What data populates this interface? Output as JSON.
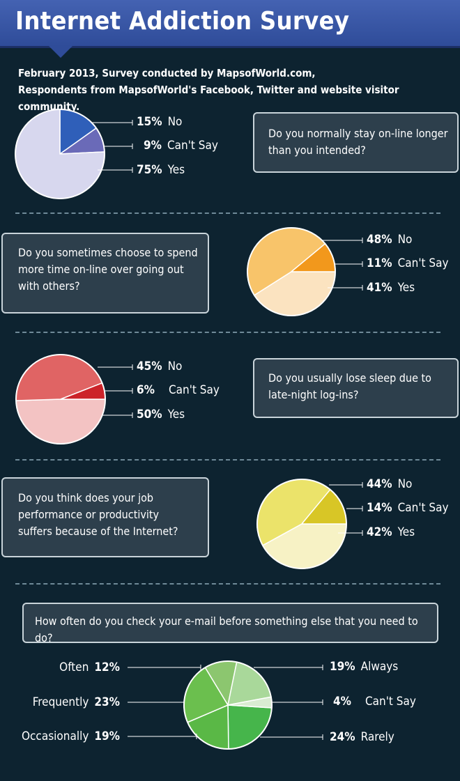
{
  "header": {
    "title": "Internet Addiction Survey",
    "subtitle_line1": "February 2013, Survey conducted by MapsofWorld.com,",
    "subtitle_line2": "Respondents from MapsofWorld's Facebook, Twitter and website visitor community."
  },
  "colors": {
    "header_bg": "#3b58a8",
    "page_bg": "#0d2330",
    "q1": [
      "#2f5fb9",
      "#6a6ab8",
      "#d7d7ee"
    ],
    "q2": [
      "#f8c46a",
      "#f2981c",
      "#fbe3c0"
    ],
    "q3": [
      "#e06464",
      "#cc2329",
      "#f3c3c3"
    ],
    "q4": [
      "#ebe36a",
      "#d8c626",
      "#f7f2c5"
    ],
    "q5": [
      "#8cc66f",
      "#6bbf4e",
      "#5ab846",
      "#46b54b",
      "#d9ecd2",
      "#a9d89a"
    ]
  },
  "chart_data": [
    {
      "type": "pie",
      "question_line1": "Do you normally stay on-line longer",
      "question_line2": "than you intended?",
      "question_line3": "",
      "categories": [
        "No",
        "Can't Say",
        "Yes"
      ],
      "values": [
        15,
        9,
        75
      ],
      "labels": [
        "15%",
        "9%",
        "75%"
      ]
    },
    {
      "type": "pie",
      "question_line1": "Do you sometimes choose to spend",
      "question_line2": "more time on-line over going out",
      "question_line3": "with others?",
      "categories": [
        "No",
        "Can't Say",
        "Yes"
      ],
      "values": [
        48,
        11,
        41
      ],
      "labels": [
        "48%",
        "11%",
        "41%"
      ]
    },
    {
      "type": "pie",
      "question_line1": "Do you usually lose sleep due to",
      "question_line2": "late-night log-ins?",
      "question_line3": "",
      "categories": [
        "No",
        "Can't Say",
        "Yes"
      ],
      "values": [
        45,
        6,
        50
      ],
      "labels": [
        "45%",
        "6%",
        "50%"
      ]
    },
    {
      "type": "pie",
      "question_line1": "Do you think does your job",
      "question_line2": "performance or productivity",
      "question_line3": "suffers because of the Internet?",
      "categories": [
        "No",
        "Can't Say",
        "Yes"
      ],
      "values": [
        44,
        14,
        42
      ],
      "labels": [
        "44%",
        "14%",
        "42%"
      ]
    },
    {
      "type": "pie",
      "question_line1": "How often do you check your e-mail before something else that you need to do?",
      "categories": [
        "Often",
        "Frequently",
        "Occasionally",
        "Rarely",
        "Can't Say",
        "Always"
      ],
      "values": [
        12,
        23,
        19,
        24,
        4,
        19
      ],
      "labels": [
        "12%",
        "23%",
        "19%",
        "24%",
        "4%",
        "19%"
      ]
    }
  ]
}
